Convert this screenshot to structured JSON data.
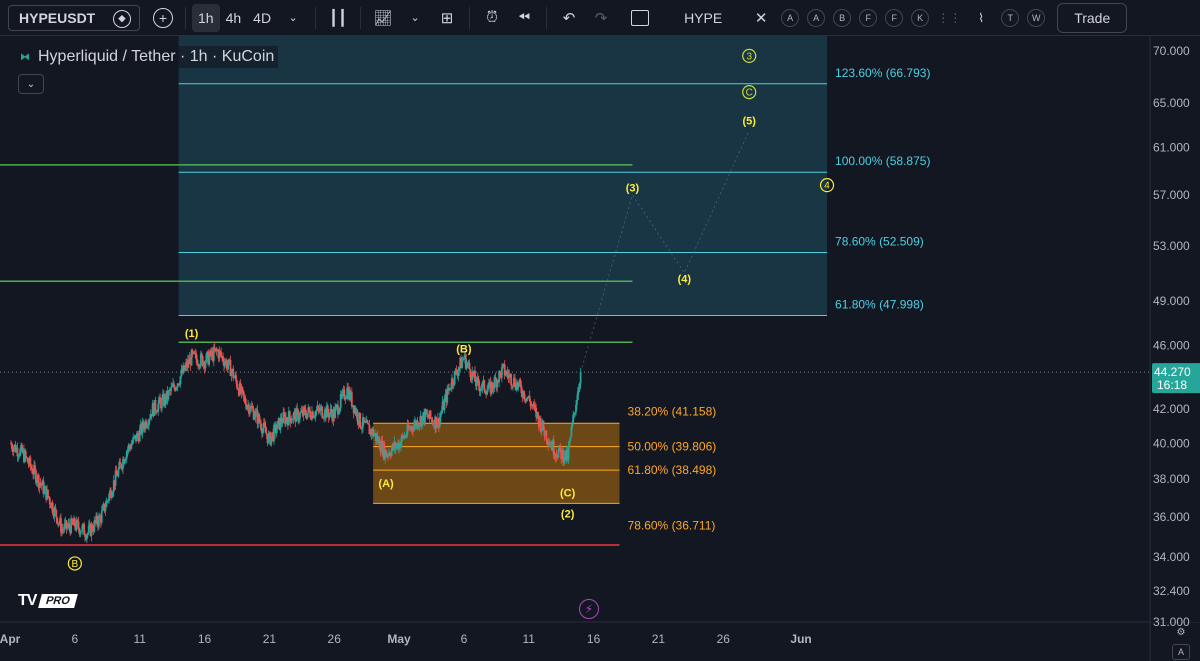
{
  "toolbar": {
    "symbol": "HYPEUSDT",
    "intervals": [
      "1h",
      "4h",
      "4D"
    ],
    "active_interval": "1h",
    "compare_symbol": "HYPE",
    "alerts_letters": [
      "A",
      "A",
      "B",
      "F",
      "F",
      "K"
    ],
    "right_letters": [
      "T",
      "W"
    ],
    "trade_label": "Trade"
  },
  "legend": {
    "title": "Hyperliquid / Tether · 1h · KuCoin"
  },
  "price_scale": {
    "ticks": [
      "70.000",
      "65.000",
      "61.000",
      "57.000",
      "53.000",
      "49.000",
      "46.000",
      "42.000",
      "40.000",
      "38.000",
      "36.000",
      "34.000",
      "32.400",
      "31.000"
    ],
    "current_price": "44.270",
    "countdown": "16:18"
  },
  "time_scale": {
    "ticks": [
      "Apr",
      "6",
      "11",
      "16",
      "21",
      "26",
      "May",
      "6",
      "11",
      "16",
      "21",
      "26",
      "Jun"
    ]
  },
  "fib_extension": {
    "levels": [
      {
        "label": "123.60% (66.793)",
        "value": 66.793
      },
      {
        "label": "100.00% (58.875)",
        "value": 58.875
      },
      {
        "label": "78.60% (52.509)",
        "value": 52.509
      },
      {
        "label": "61.80% (47.998)",
        "value": 47.998
      }
    ]
  },
  "fib_retracement": {
    "levels": [
      {
        "label": "38.20% (41.158)",
        "value": 41.158
      },
      {
        "label": "50.00% (39.806)",
        "value": 39.806
      },
      {
        "label": "61.80% (38.498)",
        "value": 38.498
      },
      {
        "label": "78.60% (36.711)",
        "value": 36.711
      }
    ]
  },
  "wave_labels": [
    {
      "text": "(1)",
      "color": "#ffeb3b"
    },
    {
      "text": "(B)",
      "color": "#ffeb3b"
    },
    {
      "text": "(A)",
      "color": "#ffeb3b"
    },
    {
      "text": "(C)",
      "color": "#ffeb3b"
    },
    {
      "text": "(2)",
      "color": "#ffeb3b"
    },
    {
      "text": "(3)",
      "color": "#ffeb3b"
    },
    {
      "text": "(4)",
      "color": "#ffeb3b"
    },
    {
      "text": "(5)",
      "color": "#ffeb3b"
    }
  ],
  "circled_labels": [
    {
      "text": "B",
      "color": "#ffeb3b"
    },
    {
      "text": "3",
      "color": "#cddc39"
    },
    {
      "text": "C",
      "color": "#cddc39"
    },
    {
      "text": "4",
      "color": "#ffeb3b"
    }
  ],
  "logo": {
    "tv": "TV",
    "pro": "PRO"
  },
  "auto_label": "A",
  "colors": {
    "background": "#131722",
    "fib_ext_line": "#4dd0e1",
    "fib_ext_fill": "#1f4c5c",
    "fib_ret_line": "#ffa726",
    "fib_ret_fill": "#8a5a12",
    "green_line": "#4caf50",
    "red_line": "#f23645",
    "up_candle": "#26a69a",
    "down_candle": "#ef5350",
    "wave": "#ffeb3b"
  },
  "chart_data": {
    "type": "candlestick",
    "series": [
      {
        "name": "HYPEUSDT",
        "close_path": [
          [
            "Apr 1",
            40.0
          ],
          [
            "Apr 2",
            39.4
          ],
          [
            "Apr 3",
            38.2
          ],
          [
            "Apr 4",
            37.0
          ],
          [
            "Apr 5",
            35.4
          ],
          [
            "Apr 6",
            35.6
          ],
          [
            "Apr 7",
            35.2
          ],
          [
            "Apr 8",
            36.0
          ],
          [
            "Apr 9",
            37.8
          ],
          [
            "Apr 10",
            39.6
          ],
          [
            "Apr 11",
            40.6
          ],
          [
            "Apr 12",
            42.0
          ],
          [
            "Apr 13",
            42.6
          ],
          [
            "Apr 14",
            43.8
          ],
          [
            "Apr 15",
            45.2
          ],
          [
            "Apr 16",
            45.0
          ],
          [
            "Apr 17",
            45.6
          ],
          [
            "Apr 18",
            44.5
          ],
          [
            "Apr 19",
            42.6
          ],
          [
            "Apr 20",
            41.6
          ],
          [
            "Apr 21",
            40.2
          ],
          [
            "Apr 22",
            41.4
          ],
          [
            "Apr 23",
            41.6
          ],
          [
            "Apr 24",
            41.8
          ],
          [
            "Apr 25",
            41.9
          ],
          [
            "Apr 26",
            41.7
          ],
          [
            "Apr 27",
            43.2
          ],
          [
            "Apr 28",
            41.2
          ],
          [
            "Apr 29",
            40.6
          ],
          [
            "Apr 30",
            39.4
          ],
          [
            "May 1",
            40.0
          ],
          [
            "May 2",
            41.0
          ],
          [
            "May 3",
            41.6
          ],
          [
            "May 4",
            41.2
          ],
          [
            "May 5",
            43.6
          ],
          [
            "May 6",
            45.2
          ],
          [
            "May 7",
            43.5
          ],
          [
            "May 8",
            43.2
          ],
          [
            "May 9",
            44.4
          ],
          [
            "May 10",
            43.6
          ],
          [
            "May 11",
            42.6
          ],
          [
            "May 12",
            41.0
          ],
          [
            "May 13",
            39.6
          ],
          [
            "May 14",
            39.2
          ],
          [
            "May 15",
            44.27
          ]
        ]
      }
    ],
    "ylim": [
      31.0,
      71.5
    ],
    "y_scale": "log",
    "xlim": [
      "Apr 1",
      "Jun 4"
    ],
    "wave_positions": [
      {
        "text": "(1)",
        "x": "Apr 15",
        "y": 46.8
      },
      {
        "text": "(B)",
        "x": "May 6",
        "y": 45.8
      },
      {
        "text": "(A)",
        "x": "Apr 30",
        "y": 37.8
      },
      {
        "text": "(C)",
        "x": "May 14",
        "y": 37.3
      },
      {
        "text": "(2)",
        "x": "May 14",
        "y": 36.2
      },
      {
        "text": "(3)",
        "x": "May 19",
        "y": 57.6
      },
      {
        "text": "(4)",
        "x": "May 23",
        "y": 50.6
      },
      {
        "text": "(5)",
        "x": "May 28",
        "y": 63.4
      },
      {
        "text": "B",
        "x": "Apr 6",
        "y": 33.7
      },
      {
        "text": "3",
        "x": "May 28",
        "y": 69.5
      },
      {
        "text": "C",
        "x": "May 28",
        "y": 66.0
      },
      {
        "text": "4",
        "x": "Jun 3",
        "y": 57.8
      }
    ],
    "horizontal_lines": [
      {
        "color": "green",
        "value": 59.5,
        "from": "Mar 31",
        "to": "May 19"
      },
      {
        "color": "green",
        "value": 50.4,
        "from": "Mar 31",
        "to": "May 19"
      },
      {
        "color": "green",
        "value": 46.2,
        "from": "Apr 14",
        "to": "May 19"
      },
      {
        "color": "red",
        "value": 34.6,
        "from": "Mar 31",
        "to": "May 18"
      }
    ],
    "fib_extension_range": {
      "from": "Apr 14",
      "to": "Jun 3"
    },
    "fib_retracement_range": {
      "from": "Apr 29",
      "to": "May 18"
    }
  }
}
